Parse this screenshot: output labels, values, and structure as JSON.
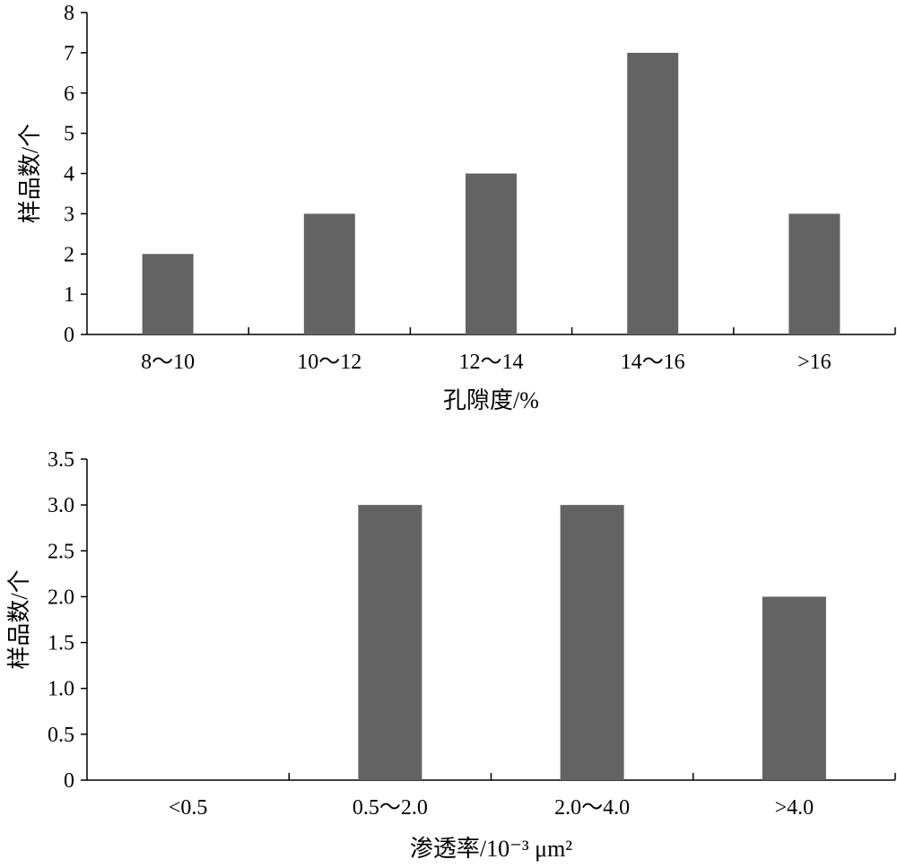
{
  "chart_data": [
    {
      "type": "bar",
      "title": "",
      "categories": [
        "8～10",
        "10～12",
        "12～14",
        "14～16",
        ">16"
      ],
      "values": [
        2,
        3,
        4,
        7,
        3
      ],
      "xlabel": "孔隙度/%",
      "ylabel": "样品数/个",
      "ylim": [
        0,
        8
      ],
      "yticks": [
        "0",
        "1",
        "2",
        "3",
        "4",
        "5",
        "6",
        "7",
        "8"
      ],
      "bar_color": "#636363",
      "grid": false,
      "legend": "none"
    },
    {
      "type": "bar",
      "title": "",
      "categories": [
        "<0.5",
        "0.5～2.0",
        "2.0～4.0",
        ">4.0"
      ],
      "values": [
        0,
        3,
        3,
        2
      ],
      "xlabel": "渗透率/10⁻³ μm²",
      "ylabel": "样品数/个",
      "ylim": [
        0,
        3.5
      ],
      "yticks": [
        "0",
        "0.5",
        "1.0",
        "1.5",
        "2.0",
        "2.5",
        "3.0",
        "3.5"
      ],
      "bar_color": "#636363",
      "grid": false,
      "legend": "none"
    }
  ]
}
